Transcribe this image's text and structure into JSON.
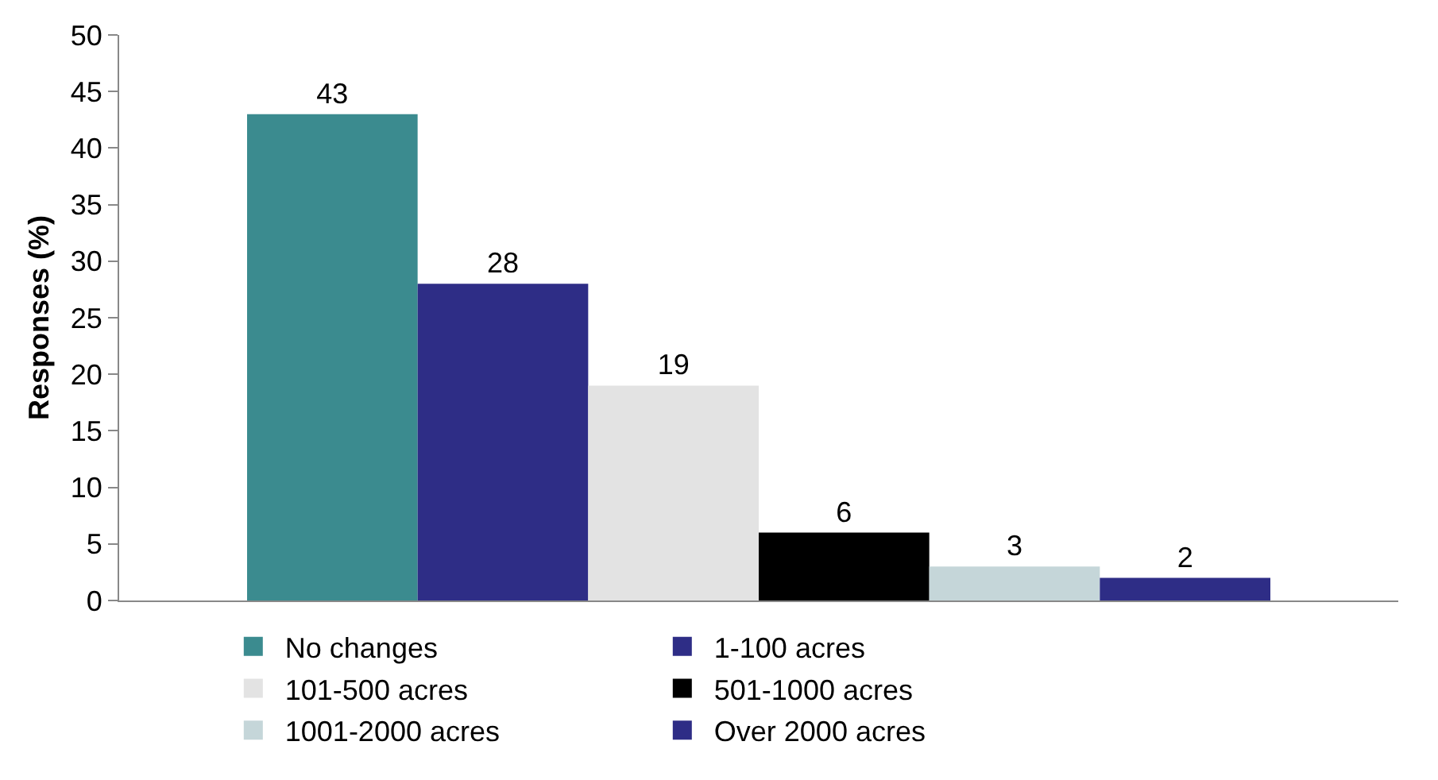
{
  "chart_data": {
    "type": "bar",
    "categories": [
      null
    ],
    "ylabel": "Responses (%)",
    "ylim": [
      0,
      50
    ],
    "yticks": [
      0,
      5,
      10,
      15,
      20,
      25,
      30,
      35,
      40,
      45,
      50
    ],
    "grid": false,
    "legend": "bottom",
    "data_labels": true,
    "series": [
      {
        "name": "No changes",
        "color": "#3b8b8f",
        "values": [
          43
        ]
      },
      {
        "name": "1-100 acres",
        "color": "#2e2d86",
        "values": [
          28
        ]
      },
      {
        "name": "101-500 acres",
        "color": "#e3e3e3",
        "values": [
          19
        ]
      },
      {
        "name": "501-1000 acres",
        "color": "#000000",
        "values": [
          6
        ]
      },
      {
        "name": "1001-2000 acres",
        "color": "#c5d6d9",
        "values": [
          3
        ]
      },
      {
        "name": "Over 2000 acres",
        "color": "#2e2d86",
        "values": [
          2
        ]
      }
    ]
  }
}
